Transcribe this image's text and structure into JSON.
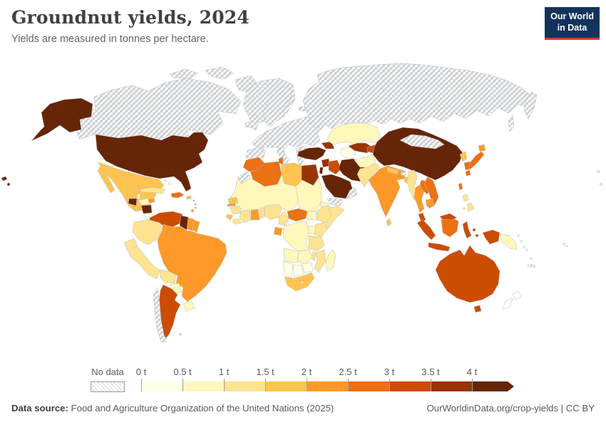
{
  "header": {
    "title": "Groundnut yields, 2024",
    "subtitle": "Yields are measured in tonnes per hectare."
  },
  "logo": {
    "line1": "Our World",
    "line2": "in Data",
    "bg_color": "#13335c",
    "accent_color": "#d6392b"
  },
  "legend": {
    "no_data_label": "No data",
    "unit": "tonnes per hectare",
    "bins": [
      {
        "label": "0 t",
        "color": "#FFFFE5"
      },
      {
        "label": "0.5 t",
        "color": "#FFF7BC"
      },
      {
        "label": "1 t",
        "color": "#FEE391"
      },
      {
        "label": "1.5 t",
        "color": "#FEC44F"
      },
      {
        "label": "2 t",
        "color": "#FE9929"
      },
      {
        "label": "2.5 t",
        "color": "#EC7014"
      },
      {
        "label": "3 t",
        "color": "#CC4C02"
      },
      {
        "label": "3.5 t",
        "color": "#993404"
      },
      {
        "label": "4 t",
        "color": "#662506"
      }
    ]
  },
  "footer": {
    "source_label": "Data source:",
    "source_text": " Food and Agriculture Organization of the United Nations (2025)",
    "credit_text": "OurWorldinData.org/crop-yields | CC BY"
  },
  "map": {
    "ocean_color": "#ffffff",
    "border_color": "#b6bcc0",
    "no_data_fill": "hatched",
    "regions": {
      "alaska": "#662506",
      "united-states": "#662506",
      "hawaii": "#662506",
      "canada": "no-data",
      "greenland": "no-data",
      "iceland": "no-data",
      "svalbard": "no-data",
      "mexico": "#FEC44F",
      "belize": "#FFF7BC",
      "guatemala": "#662506",
      "honduras": "#FFF7BC",
      "el-salvador": "#FEC44F",
      "nicaragua": "#662506",
      "costa-rica": "#FFFFE5",
      "panama": "#FEE391",
      "cuba": "#FEE391",
      "bahamas": "#FFF7BC",
      "jamaica": "#FE9929",
      "hispaniola": "#EC7014",
      "puerto-rico": "#FEC44F",
      "lesser-antilles": "#FE9929",
      "trinidad-and-tobago": "#FE9929",
      "colombia": "#FEE391",
      "venezuela": "#CC4C02",
      "guyana": "#662506",
      "suriname": "#FE9929",
      "french-guiana": "#FE9929",
      "ecuador": "#FEE391",
      "peru": "#FEE391",
      "bolivia": "#FEE391",
      "paraguay": "#FFF7BC",
      "brazil": "#FE9929",
      "uruguay": "#FFF7BC",
      "argentina": "#CC4C02",
      "chile": "no-data",
      "falkland-islands": "no-data",
      "scandinavia": "no-data",
      "united-kingdom": "no-data",
      "ireland": "no-data",
      "europe": "no-data",
      "iberia": "no-data",
      "italy": "no-data",
      "balkans": "no-data",
      "russia": "no-data",
      "mongolia": "no-data",
      "morocco": "#EC7014",
      "western-sahara": "no-data",
      "algeria": "#EC7014",
      "tunisia": "#EC7014",
      "libya": "#FEC44F",
      "egypt": "#993404",
      "west-africa": "#FFF7BC",
      "senegal": "#FEC44F",
      "gambia": "#FE9929",
      "guinea": "#FEE391",
      "sierra-leone": "#FEC44F",
      "liberia": "#FEE391",
      "ivory-coast": "#FEE391",
      "ghana": "#FE9929",
      "togo-benin": "#FEE391",
      "nigeria": "#FEE391",
      "cameroon": "#FEE391",
      "gabon": "#FE9929",
      "central-african-republic": "#EC7014",
      "sudan": "#FFF7BC",
      "south-sudan": "#FFF7BC",
      "eritrea": "#FFF7BC",
      "ethiopia": "#FEE391",
      "somalia": "#FEE391",
      "uganda": "#FFF7BC",
      "kenya": "#FEE391",
      "tanzania": "#FEE391",
      "drc": "#FFF7BC",
      "angola": "#FFF7BC",
      "zambia": "#FFF7BC",
      "malawi": "#FEE391",
      "mozambique": "#FEE391",
      "zimbabwe": "#FFFFE5",
      "botswana": "#FFFFE5",
      "namibia": "#FFFFE5",
      "south-africa": "#FEC44F",
      "lesotho": "#FFFFE5",
      "madagascar": "#FFF7BC",
      "turkey": "#662506",
      "syria": "#993404",
      "israel": "#662506",
      "iraq": "#CC4C02",
      "iran": "#662506",
      "saudi-arabia": "#662506",
      "yemen": "no-data",
      "oman": "no-data",
      "caucasus": "#993404",
      "kazakhstan": "#FFF7BC",
      "uzbekistan": "#993404",
      "turkmenistan": "#FFFFE5",
      "kyrgyzstan-tajikistan": "#CC4C02",
      "afghanistan": "#FFF7BC",
      "pakistan": "#FEE391",
      "india": "#FE9929",
      "nepal": "#FEC44F",
      "bhutan": "no-data",
      "bangladesh": "#FEC44F",
      "sri-lanka": "#FEC44F",
      "myanmar": "#FEE391",
      "thailand": "#FE9929",
      "laos": "#EC7014",
      "vietnam": "#EC7014",
      "cambodia": "#FE9929",
      "malaysia": "#CC4C02",
      "china": "#662506",
      "north-korea": "#FEC44F",
      "south-korea": "#EC7014",
      "japan": "#EC7014",
      "japan-hokkaido": "#FE9929",
      "taiwan": "#EC7014",
      "philippines": "#FEE391",
      "sumatra": "#CC4C02",
      "java": "#CC4C02",
      "borneo": "#EC7014",
      "sulawesi": "#CC4C02",
      "moluccas": "#CC4C02",
      "west-papua": "#CC4C02",
      "papua-new-guinea": "#FFF7BC",
      "solomon-islands": "#FFF7BC",
      "vanuatu": "#FFF7BC",
      "fiji": "#FFF7BC",
      "new-caledonia": "no-data",
      "australia": "#CC4C02",
      "tasmania": "#CC4C02",
      "new-zealand": "#ffffff",
      "pacific-islands": "no-data"
    }
  }
}
